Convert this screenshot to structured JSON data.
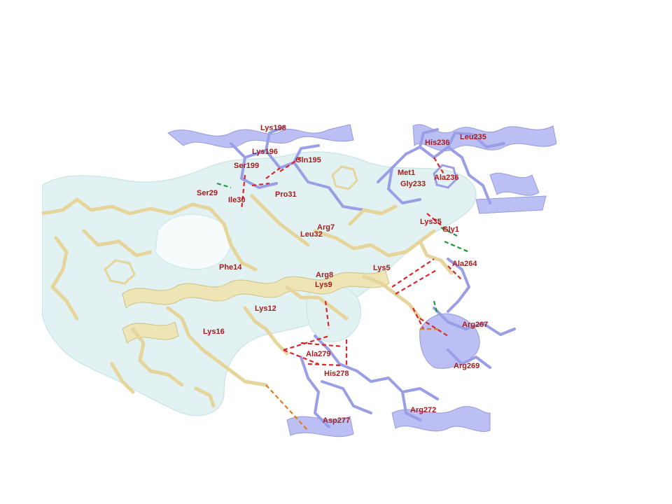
{
  "colors": {
    "background": "#ffffff",
    "label": "#a61b1b",
    "peptide_stick": "#e6d59a",
    "protein_stick": "#9a9ee6",
    "ribbon": "#b6baf2",
    "surface": "#cbe9ea",
    "hbond_red": "#d8262a",
    "hbond_green": "#1f9a3a",
    "salt_bridge_orange": "#de7a1e"
  },
  "labels": [
    {
      "id": "lys198",
      "text": "Lys198"
    },
    {
      "id": "lys196",
      "text": "Lys196"
    },
    {
      "id": "ser199",
      "text": "Ser199"
    },
    {
      "id": "gln195",
      "text": "Gln195"
    },
    {
      "id": "ser29",
      "text": "Ser29"
    },
    {
      "id": "ile30",
      "text": "Ile30"
    },
    {
      "id": "pro31",
      "text": "Pro31"
    },
    {
      "id": "his236",
      "text": "His236"
    },
    {
      "id": "leu235",
      "text": "Leu235"
    },
    {
      "id": "met1",
      "text": "Met1"
    },
    {
      "id": "gly233",
      "text": "Gly233"
    },
    {
      "id": "ala236",
      "text": "Ala236"
    },
    {
      "id": "lys35",
      "text": "Lys35"
    },
    {
      "id": "gly1",
      "text": "Gly1"
    },
    {
      "id": "arg7",
      "text": "Arg7"
    },
    {
      "id": "leu32",
      "text": "Leu32"
    },
    {
      "id": "phe14",
      "text": "Phe14"
    },
    {
      "id": "arg8",
      "text": "Arg8"
    },
    {
      "id": "lys9",
      "text": "Lys9"
    },
    {
      "id": "lys5",
      "text": "Lys5"
    },
    {
      "id": "ala264",
      "text": "Ala264"
    },
    {
      "id": "lys12",
      "text": "Lys12"
    },
    {
      "id": "lys16",
      "text": "Lys16"
    },
    {
      "id": "arg267",
      "text": "Arg267"
    },
    {
      "id": "ala279",
      "text": "Ala279"
    },
    {
      "id": "his278",
      "text": "His278"
    },
    {
      "id": "arg269",
      "text": "Arg269"
    },
    {
      "id": "arg272",
      "text": "Arg272"
    },
    {
      "id": "asp277",
      "text": "Asp277"
    }
  ]
}
